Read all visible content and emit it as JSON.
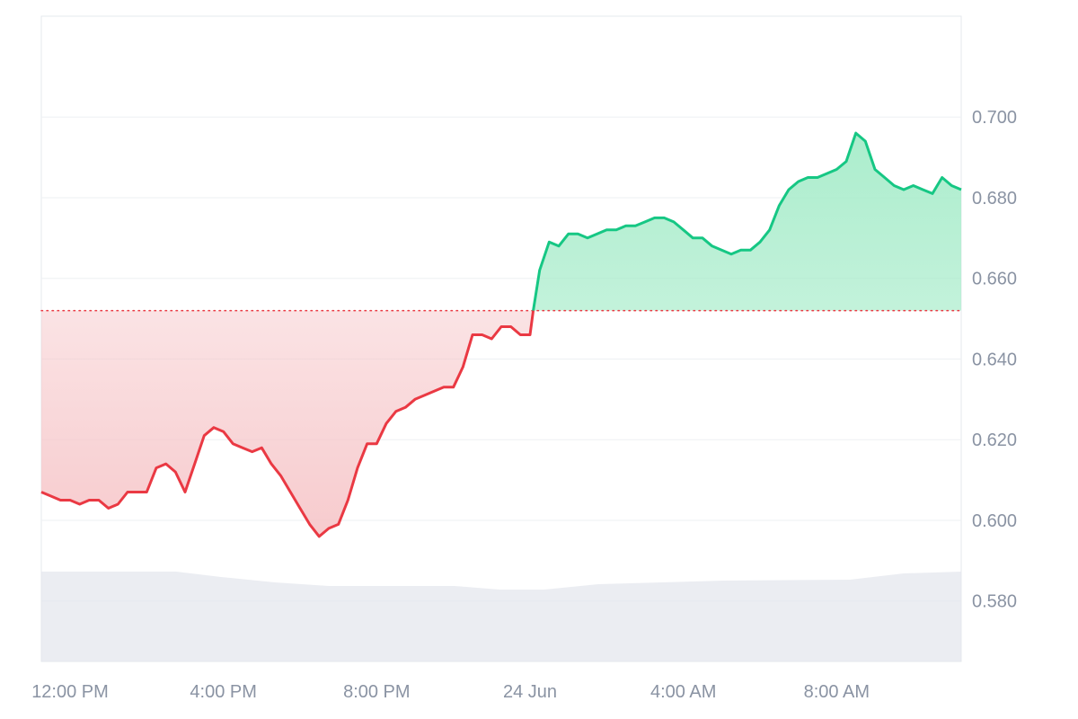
{
  "chart_data": {
    "type": "area",
    "title": "",
    "xlabel": "",
    "ylabel": "",
    "baseline": 0.652,
    "ylim": [
      0.565,
      0.725
    ],
    "xlim": [
      "2024-06-23 11:15",
      "2024-06-24 11:15"
    ],
    "grid": true,
    "legend": "none",
    "colors": {
      "up_line": "#16c784",
      "up_fill_top": "#a7ecca",
      "down_line": "#ea3943",
      "down_fill_bottom": "#f6c5c8",
      "volume": "#e3e6ec",
      "baseline_dots": "#ea3943"
    },
    "y_ticks": [
      {
        "value": 0.58,
        "label": "0.580"
      },
      {
        "value": 0.6,
        "label": "0.600"
      },
      {
        "value": 0.62,
        "label": "0.620"
      },
      {
        "value": 0.64,
        "label": "0.640"
      },
      {
        "value": 0.66,
        "label": "0.660"
      },
      {
        "value": 0.68,
        "label": "0.680"
      },
      {
        "value": 0.7,
        "label": "0.700"
      }
    ],
    "x_ticks": [
      {
        "time": "2024-06-23 12:00",
        "label": "12:00 PM"
      },
      {
        "time": "2024-06-23 16:00",
        "label": "4:00 PM"
      },
      {
        "time": "2024-06-23 20:00",
        "label": "8:00 PM"
      },
      {
        "time": "2024-06-24 00:00",
        "label": "24 Jun"
      },
      {
        "time": "2024-06-24 04:00",
        "label": "4:00 AM"
      },
      {
        "time": "2024-06-24 08:00",
        "label": "8:00 AM"
      }
    ],
    "series": [
      {
        "values": [
          [
            "2024-06-23 11:15",
            0.607
          ],
          [
            "2024-06-23 11:30",
            0.606
          ],
          [
            "2024-06-23 11:45",
            0.605
          ],
          [
            "2024-06-23 12:00",
            0.605
          ],
          [
            "2024-06-23 12:15",
            0.604
          ],
          [
            "2024-06-23 12:30",
            0.605
          ],
          [
            "2024-06-23 12:45",
            0.605
          ],
          [
            "2024-06-23 13:00",
            0.603
          ],
          [
            "2024-06-23 13:15",
            0.604
          ],
          [
            "2024-06-23 13:30",
            0.607
          ],
          [
            "2024-06-23 13:45",
            0.607
          ],
          [
            "2024-06-23 14:00",
            0.607
          ],
          [
            "2024-06-23 14:15",
            0.613
          ],
          [
            "2024-06-23 14:30",
            0.614
          ],
          [
            "2024-06-23 14:45",
            0.612
          ],
          [
            "2024-06-23 15:00",
            0.607
          ],
          [
            "2024-06-23 15:15",
            0.614
          ],
          [
            "2024-06-23 15:30",
            0.621
          ],
          [
            "2024-06-23 15:45",
            0.623
          ],
          [
            "2024-06-23 16:00",
            0.622
          ],
          [
            "2024-06-23 16:15",
            0.619
          ],
          [
            "2024-06-23 16:30",
            0.618
          ],
          [
            "2024-06-23 16:45",
            0.617
          ],
          [
            "2024-06-23 17:00",
            0.618
          ],
          [
            "2024-06-23 17:15",
            0.614
          ],
          [
            "2024-06-23 17:30",
            0.611
          ],
          [
            "2024-06-23 17:45",
            0.607
          ],
          [
            "2024-06-23 18:00",
            0.603
          ],
          [
            "2024-06-23 18:15",
            0.599
          ],
          [
            "2024-06-23 18:30",
            0.596
          ],
          [
            "2024-06-23 18:45",
            0.598
          ],
          [
            "2024-06-23 19:00",
            0.599
          ],
          [
            "2024-06-23 19:15",
            0.605
          ],
          [
            "2024-06-23 19:30",
            0.613
          ],
          [
            "2024-06-23 19:45",
            0.619
          ],
          [
            "2024-06-23 20:00",
            0.619
          ],
          [
            "2024-06-23 20:15",
            0.624
          ],
          [
            "2024-06-23 20:30",
            0.627
          ],
          [
            "2024-06-23 20:45",
            0.628
          ],
          [
            "2024-06-23 21:00",
            0.63
          ],
          [
            "2024-06-23 21:15",
            0.631
          ],
          [
            "2024-06-23 21:30",
            0.632
          ],
          [
            "2024-06-23 21:45",
            0.633
          ],
          [
            "2024-06-23 22:00",
            0.633
          ],
          [
            "2024-06-23 22:15",
            0.638
          ],
          [
            "2024-06-23 22:30",
            0.646
          ],
          [
            "2024-06-23 22:45",
            0.646
          ],
          [
            "2024-06-23 23:00",
            0.645
          ],
          [
            "2024-06-23 23:15",
            0.648
          ],
          [
            "2024-06-23 23:30",
            0.648
          ],
          [
            "2024-06-23 23:45",
            0.646
          ],
          [
            "2024-06-24 00:00",
            0.646
          ],
          [
            "2024-06-24 00:05",
            0.652
          ],
          [
            "2024-06-24 00:15",
            0.662
          ],
          [
            "2024-06-24 00:30",
            0.669
          ],
          [
            "2024-06-24 00:45",
            0.668
          ],
          [
            "2024-06-24 01:00",
            0.671
          ],
          [
            "2024-06-24 01:15",
            0.671
          ],
          [
            "2024-06-24 01:30",
            0.67
          ],
          [
            "2024-06-24 01:45",
            0.671
          ],
          [
            "2024-06-24 02:00",
            0.672
          ],
          [
            "2024-06-24 02:15",
            0.672
          ],
          [
            "2024-06-24 02:30",
            0.673
          ],
          [
            "2024-06-24 02:45",
            0.673
          ],
          [
            "2024-06-24 03:00",
            0.674
          ],
          [
            "2024-06-24 03:15",
            0.675
          ],
          [
            "2024-06-24 03:30",
            0.675
          ],
          [
            "2024-06-24 03:45",
            0.674
          ],
          [
            "2024-06-24 04:00",
            0.672
          ],
          [
            "2024-06-24 04:15",
            0.67
          ],
          [
            "2024-06-24 04:30",
            0.67
          ],
          [
            "2024-06-24 04:45",
            0.668
          ],
          [
            "2024-06-24 05:00",
            0.667
          ],
          [
            "2024-06-24 05:15",
            0.666
          ],
          [
            "2024-06-24 05:30",
            0.667
          ],
          [
            "2024-06-24 05:45",
            0.667
          ],
          [
            "2024-06-24 06:00",
            0.669
          ],
          [
            "2024-06-24 06:15",
            0.672
          ],
          [
            "2024-06-24 06:30",
            0.678
          ],
          [
            "2024-06-24 06:45",
            0.682
          ],
          [
            "2024-06-24 07:00",
            0.684
          ],
          [
            "2024-06-24 07:15",
            0.685
          ],
          [
            "2024-06-24 07:30",
            0.685
          ],
          [
            "2024-06-24 07:45",
            0.686
          ],
          [
            "2024-06-24 08:00",
            0.687
          ],
          [
            "2024-06-24 08:15",
            0.689
          ],
          [
            "2024-06-24 08:30",
            0.696
          ],
          [
            "2024-06-24 08:45",
            0.694
          ],
          [
            "2024-06-24 09:00",
            0.687
          ],
          [
            "2024-06-24 09:15",
            0.685
          ],
          [
            "2024-06-24 09:30",
            0.683
          ],
          [
            "2024-06-24 09:45",
            0.682
          ],
          [
            "2024-06-24 10:00",
            0.683
          ],
          [
            "2024-06-24 10:15",
            0.682
          ],
          [
            "2024-06-24 10:30",
            0.681
          ],
          [
            "2024-06-24 10:45",
            0.685
          ],
          [
            "2024-06-24 11:00",
            0.683
          ],
          [
            "2024-06-24 11:15",
            0.682
          ]
        ]
      }
    ]
  }
}
